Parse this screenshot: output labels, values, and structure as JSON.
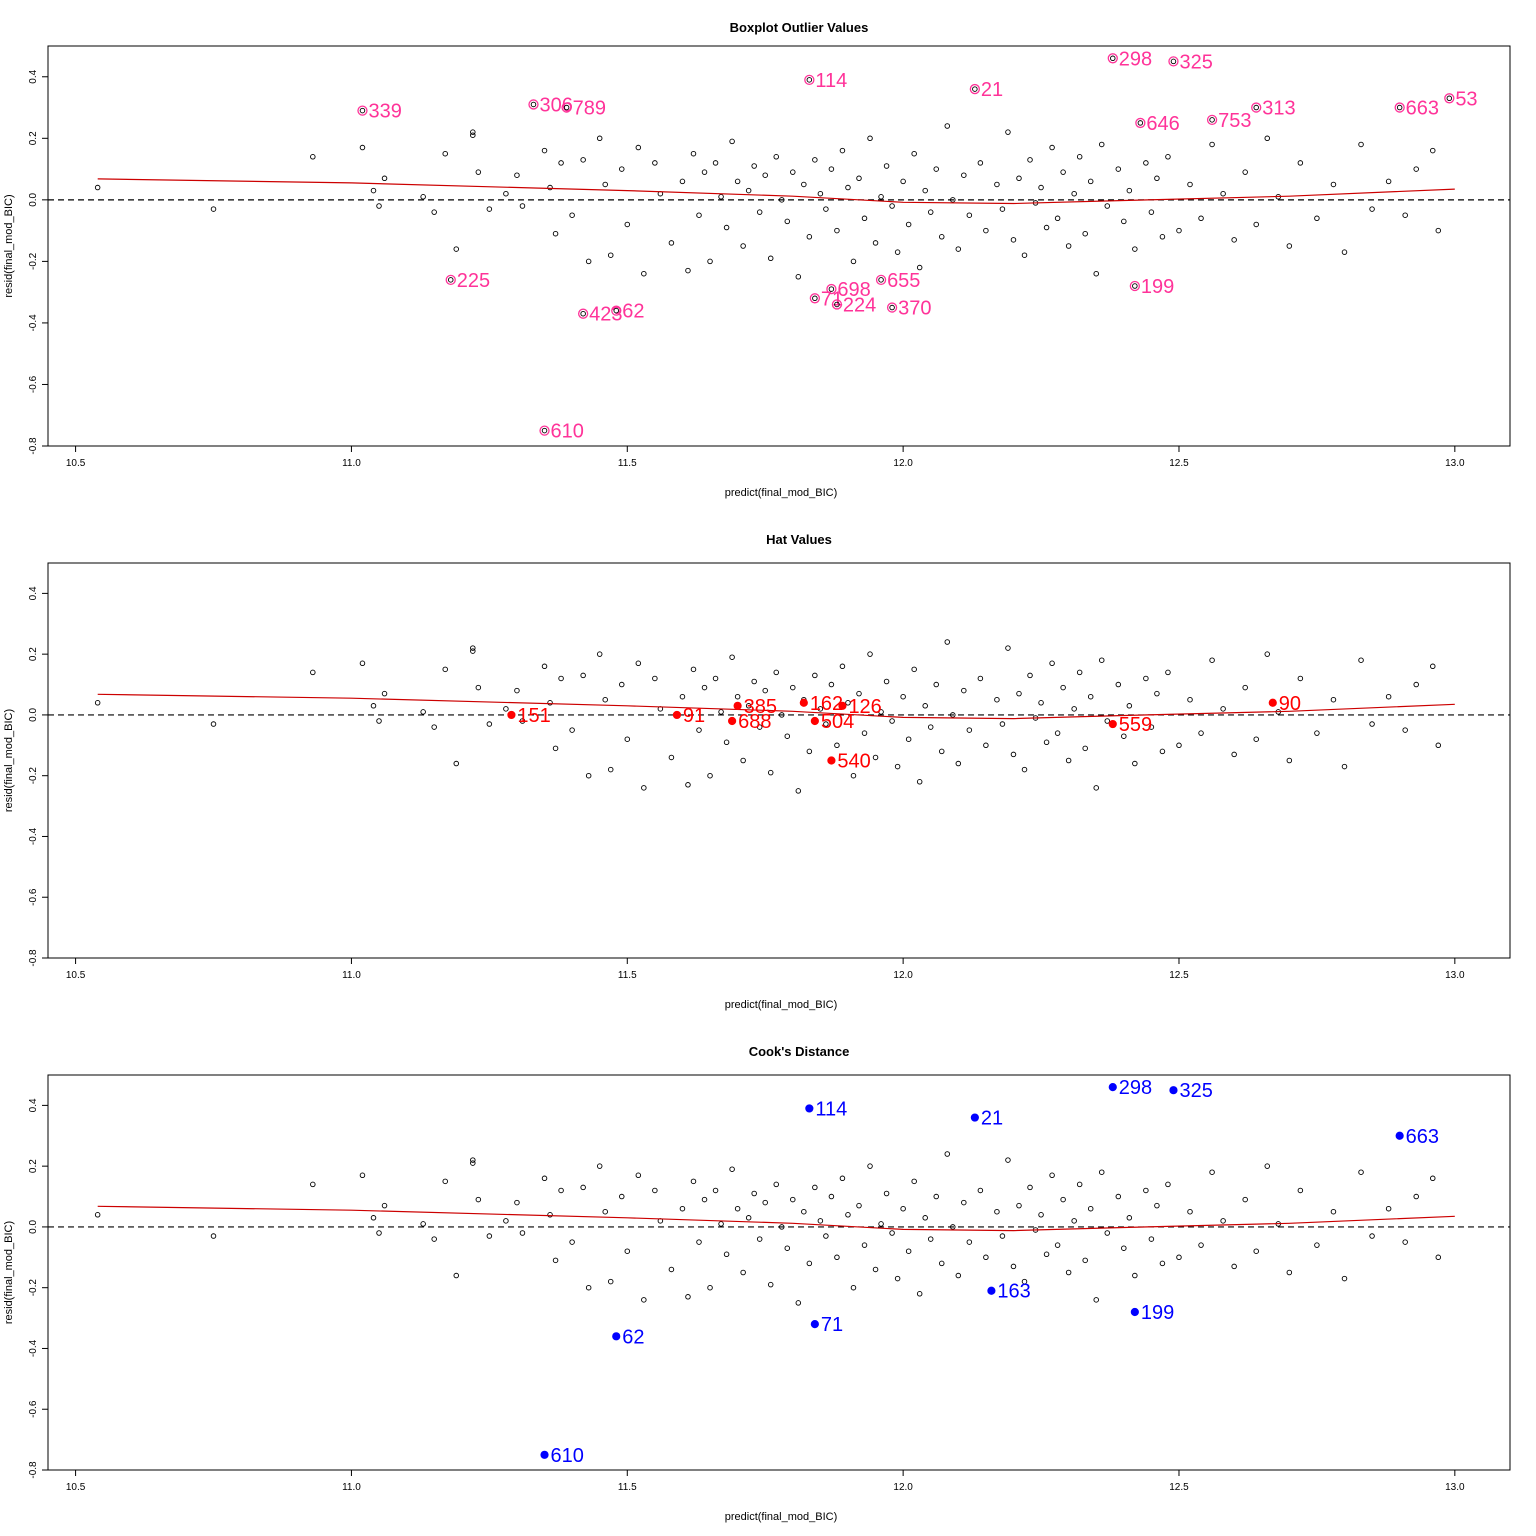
{
  "chart_data": [
    {
      "type": "scatter",
      "title": "Boxplot Outlier Values",
      "xlabel": "predict(final_mod_BIC)",
      "ylabel": "resid(final_mod_BIC)",
      "xlim": [
        10.45,
        13.1
      ],
      "ylim": [
        -0.8,
        0.5
      ],
      "x_ticks": [
        "10.5",
        "11.0",
        "11.5",
        "12.0",
        "12.5",
        "13.0"
      ],
      "y_ticks": [
        "-0.8",
        "-0.6",
        "-0.4",
        "-0.2",
        "0.0",
        "0.2",
        "0.4"
      ],
      "reference_line_y": 0,
      "smooth_color": "#cc0000",
      "highlight_color": "#ff3399",
      "highlight_style": "ringed",
      "highlighted_points": [
        {
          "label": "339",
          "x": 11.02,
          "y": 0.29
        },
        {
          "label": "306",
          "x": 11.33,
          "y": 0.31
        },
        {
          "label": "789",
          "x": 11.39,
          "y": 0.3
        },
        {
          "label": "114",
          "x": 11.83,
          "y": 0.39
        },
        {
          "label": "21",
          "x": 12.13,
          "y": 0.36
        },
        {
          "label": "298",
          "x": 12.38,
          "y": 0.46
        },
        {
          "label": "325",
          "x": 12.49,
          "y": 0.45
        },
        {
          "label": "646",
          "x": 12.43,
          "y": 0.25
        },
        {
          "label": "753",
          "x": 12.56,
          "y": 0.26
        },
        {
          "label": "313",
          "x": 12.64,
          "y": 0.3
        },
        {
          "label": "663",
          "x": 12.9,
          "y": 0.3
        },
        {
          "label": "53",
          "x": 12.99,
          "y": 0.33
        },
        {
          "label": "225",
          "x": 11.18,
          "y": -0.26
        },
        {
          "label": "423",
          "x": 11.42,
          "y": -0.37
        },
        {
          "label": "62",
          "x": 11.48,
          "y": -0.36
        },
        {
          "label": "71",
          "x": 11.84,
          "y": -0.32
        },
        {
          "label": "698",
          "x": 11.87,
          "y": -0.29
        },
        {
          "label": "655",
          "x": 11.96,
          "y": -0.26
        },
        {
          "label": "224",
          "x": 11.88,
          "y": -0.34
        },
        {
          "label": "370",
          "x": 11.98,
          "y": -0.35
        },
        {
          "label": "199",
          "x": 12.42,
          "y": -0.28
        },
        {
          "label": "610",
          "x": 11.35,
          "y": -0.75
        }
      ]
    },
    {
      "type": "scatter",
      "title": "Hat Values",
      "xlabel": "predict(final_mod_BIC)",
      "ylabel": "resid(final_mod_BIC)",
      "xlim": [
        10.45,
        13.1
      ],
      "ylim": [
        -0.8,
        0.5
      ],
      "x_ticks": [
        "10.5",
        "11.0",
        "11.5",
        "12.0",
        "12.5",
        "13.0"
      ],
      "y_ticks": [
        "-0.8",
        "-0.6",
        "-0.4",
        "-0.2",
        "0.0",
        "0.2",
        "0.4"
      ],
      "reference_line_y": 0,
      "smooth_color": "#cc0000",
      "highlight_color": "#ff0000",
      "highlight_style": "filled",
      "highlighted_points": [
        {
          "label": "151",
          "x": 11.29,
          "y": 0.0
        },
        {
          "label": "91",
          "x": 11.59,
          "y": 0.0
        },
        {
          "label": "385",
          "x": 11.7,
          "y": 0.03
        },
        {
          "label": "688",
          "x": 11.69,
          "y": -0.02
        },
        {
          "label": "162",
          "x": 11.82,
          "y": 0.04
        },
        {
          "label": "504",
          "x": 11.84,
          "y": -0.02
        },
        {
          "label": "126",
          "x": 11.89,
          "y": 0.03
        },
        {
          "label": "540",
          "x": 11.87,
          "y": -0.15
        },
        {
          "label": "559",
          "x": 12.38,
          "y": -0.03
        },
        {
          "label": "90",
          "x": 12.67,
          "y": 0.04
        }
      ]
    },
    {
      "type": "scatter",
      "title": "Cook's Distance",
      "xlabel": "predict(final_mod_BIC)",
      "ylabel": "resid(final_mod_BIC)",
      "xlim": [
        10.45,
        13.1
      ],
      "ylim": [
        -0.8,
        0.5
      ],
      "x_ticks": [
        "10.5",
        "11.0",
        "11.5",
        "12.0",
        "12.5",
        "13.0"
      ],
      "y_ticks": [
        "-0.8",
        "-0.6",
        "-0.4",
        "-0.2",
        "0.0",
        "0.2",
        "0.4"
      ],
      "reference_line_y": 0,
      "smooth_color": "#cc0000",
      "highlight_color": "#0000ff",
      "highlight_style": "filled",
      "highlighted_points": [
        {
          "label": "114",
          "x": 11.83,
          "y": 0.39
        },
        {
          "label": "21",
          "x": 12.13,
          "y": 0.36
        },
        {
          "label": "298",
          "x": 12.38,
          "y": 0.46
        },
        {
          "label": "325",
          "x": 12.49,
          "y": 0.45
        },
        {
          "label": "663",
          "x": 12.9,
          "y": 0.3
        },
        {
          "label": "163",
          "x": 12.16,
          "y": -0.21
        },
        {
          "label": "199",
          "x": 12.42,
          "y": -0.28
        },
        {
          "label": "62",
          "x": 11.48,
          "y": -0.36
        },
        {
          "label": "71",
          "x": 11.84,
          "y": -0.32
        },
        {
          "label": "610",
          "x": 11.35,
          "y": -0.75
        }
      ]
    }
  ],
  "shared_smooth_curve": [
    {
      "x": 10.54,
      "y": 0.068
    },
    {
      "x": 11.0,
      "y": 0.055
    },
    {
      "x": 11.5,
      "y": 0.03
    },
    {
      "x": 11.8,
      "y": 0.012
    },
    {
      "x": 12.0,
      "y": -0.008
    },
    {
      "x": 12.2,
      "y": -0.012
    },
    {
      "x": 12.4,
      "y": -0.002
    },
    {
      "x": 12.7,
      "y": 0.012
    },
    {
      "x": 13.0,
      "y": 0.035
    }
  ],
  "background_points": [
    {
      "x": 10.54,
      "y": 0.04
    },
    {
      "x": 10.75,
      "y": -0.03
    },
    {
      "x": 10.93,
      "y": 0.14
    },
    {
      "x": 11.02,
      "y": 0.17
    },
    {
      "x": 11.04,
      "y": 0.03
    },
    {
      "x": 11.05,
      "y": -0.02
    },
    {
      "x": 11.06,
      "y": 0.07
    },
    {
      "x": 11.13,
      "y": 0.01
    },
    {
      "x": 11.15,
      "y": -0.04
    },
    {
      "x": 11.17,
      "y": 0.15
    },
    {
      "x": 11.19,
      "y": -0.16
    },
    {
      "x": 11.22,
      "y": 0.22
    },
    {
      "x": 11.22,
      "y": 0.21
    },
    {
      "x": 11.23,
      "y": 0.09
    },
    {
      "x": 11.25,
      "y": -0.03
    },
    {
      "x": 11.28,
      "y": 0.02
    },
    {
      "x": 11.3,
      "y": 0.08
    },
    {
      "x": 11.31,
      "y": -0.02
    },
    {
      "x": 11.35,
      "y": 0.16
    },
    {
      "x": 11.36,
      "y": 0.04
    },
    {
      "x": 11.37,
      "y": -0.11
    },
    {
      "x": 11.38,
      "y": 0.12
    },
    {
      "x": 11.4,
      "y": -0.05
    },
    {
      "x": 11.42,
      "y": 0.13
    },
    {
      "x": 11.43,
      "y": -0.2
    },
    {
      "x": 11.45,
      "y": 0.2
    },
    {
      "x": 11.46,
      "y": 0.05
    },
    {
      "x": 11.47,
      "y": -0.18
    },
    {
      "x": 11.49,
      "y": 0.1
    },
    {
      "x": 11.5,
      "y": -0.08
    },
    {
      "x": 11.52,
      "y": 0.17
    },
    {
      "x": 11.53,
      "y": -0.24
    },
    {
      "x": 11.55,
      "y": 0.12
    },
    {
      "x": 11.56,
      "y": 0.02
    },
    {
      "x": 11.58,
      "y": -0.14
    },
    {
      "x": 11.6,
      "y": 0.06
    },
    {
      "x": 11.61,
      "y": -0.23
    },
    {
      "x": 11.62,
      "y": 0.15
    },
    {
      "x": 11.63,
      "y": -0.05
    },
    {
      "x": 11.64,
      "y": 0.09
    },
    {
      "x": 11.65,
      "y": -0.2
    },
    {
      "x": 11.66,
      "y": 0.12
    },
    {
      "x": 11.67,
      "y": 0.01
    },
    {
      "x": 11.68,
      "y": -0.09
    },
    {
      "x": 11.69,
      "y": 0.19
    },
    {
      "x": 11.7,
      "y": 0.06
    },
    {
      "x": 11.71,
      "y": -0.15
    },
    {
      "x": 11.72,
      "y": 0.03
    },
    {
      "x": 11.73,
      "y": 0.11
    },
    {
      "x": 11.74,
      "y": -0.04
    },
    {
      "x": 11.75,
      "y": 0.08
    },
    {
      "x": 11.76,
      "y": -0.19
    },
    {
      "x": 11.77,
      "y": 0.14
    },
    {
      "x": 11.78,
      "y": 0.0
    },
    {
      "x": 11.79,
      "y": -0.07
    },
    {
      "x": 11.8,
      "y": 0.09
    },
    {
      "x": 11.81,
      "y": -0.25
    },
    {
      "x": 11.82,
      "y": 0.05
    },
    {
      "x": 11.83,
      "y": -0.12
    },
    {
      "x": 11.84,
      "y": 0.13
    },
    {
      "x": 11.85,
      "y": 0.02
    },
    {
      "x": 11.86,
      "y": -0.03
    },
    {
      "x": 11.87,
      "y": 0.1
    },
    {
      "x": 11.88,
      "y": -0.1
    },
    {
      "x": 11.89,
      "y": 0.16
    },
    {
      "x": 11.9,
      "y": 0.04
    },
    {
      "x": 11.91,
      "y": -0.2
    },
    {
      "x": 11.92,
      "y": 0.07
    },
    {
      "x": 11.93,
      "y": -0.06
    },
    {
      "x": 11.94,
      "y": 0.2
    },
    {
      "x": 11.95,
      "y": -0.14
    },
    {
      "x": 11.96,
      "y": 0.01
    },
    {
      "x": 11.97,
      "y": 0.11
    },
    {
      "x": 11.98,
      "y": -0.02
    },
    {
      "x": 11.99,
      "y": -0.17
    },
    {
      "x": 12.0,
      "y": 0.06
    },
    {
      "x": 12.01,
      "y": -0.08
    },
    {
      "x": 12.02,
      "y": 0.15
    },
    {
      "x": 12.03,
      "y": -0.22
    },
    {
      "x": 12.04,
      "y": 0.03
    },
    {
      "x": 12.05,
      "y": -0.04
    },
    {
      "x": 12.06,
      "y": 0.1
    },
    {
      "x": 12.07,
      "y": -0.12
    },
    {
      "x": 12.08,
      "y": 0.24
    },
    {
      "x": 12.09,
      "y": 0.0
    },
    {
      "x": 12.1,
      "y": -0.16
    },
    {
      "x": 12.11,
      "y": 0.08
    },
    {
      "x": 12.12,
      "y": -0.05
    },
    {
      "x": 12.14,
      "y": 0.12
    },
    {
      "x": 12.15,
      "y": -0.1
    },
    {
      "x": 12.17,
      "y": 0.05
    },
    {
      "x": 12.18,
      "y": -0.03
    },
    {
      "x": 12.19,
      "y": 0.22
    },
    {
      "x": 12.2,
      "y": -0.13
    },
    {
      "x": 12.21,
      "y": 0.07
    },
    {
      "x": 12.22,
      "y": -0.18
    },
    {
      "x": 12.23,
      "y": 0.13
    },
    {
      "x": 12.24,
      "y": -0.01
    },
    {
      "x": 12.25,
      "y": 0.04
    },
    {
      "x": 12.26,
      "y": -0.09
    },
    {
      "x": 12.27,
      "y": 0.17
    },
    {
      "x": 12.28,
      "y": -0.06
    },
    {
      "x": 12.29,
      "y": 0.09
    },
    {
      "x": 12.3,
      "y": -0.15
    },
    {
      "x": 12.31,
      "y": 0.02
    },
    {
      "x": 12.32,
      "y": 0.14
    },
    {
      "x": 12.33,
      "y": -0.11
    },
    {
      "x": 12.34,
      "y": 0.06
    },
    {
      "x": 12.35,
      "y": -0.24
    },
    {
      "x": 12.36,
      "y": 0.18
    },
    {
      "x": 12.37,
      "y": -0.02
    },
    {
      "x": 12.39,
      "y": 0.1
    },
    {
      "x": 12.4,
      "y": -0.07
    },
    {
      "x": 12.41,
      "y": 0.03
    },
    {
      "x": 12.42,
      "y": -0.16
    },
    {
      "x": 12.44,
      "y": 0.12
    },
    {
      "x": 12.45,
      "y": -0.04
    },
    {
      "x": 12.46,
      "y": 0.07
    },
    {
      "x": 12.47,
      "y": -0.12
    },
    {
      "x": 12.48,
      "y": 0.14
    },
    {
      "x": 12.5,
      "y": -0.1
    },
    {
      "x": 12.52,
      "y": 0.05
    },
    {
      "x": 12.54,
      "y": -0.06
    },
    {
      "x": 12.56,
      "y": 0.18
    },
    {
      "x": 12.58,
      "y": 0.02
    },
    {
      "x": 12.6,
      "y": -0.13
    },
    {
      "x": 12.62,
      "y": 0.09
    },
    {
      "x": 12.64,
      "y": -0.08
    },
    {
      "x": 12.66,
      "y": 0.2
    },
    {
      "x": 12.68,
      "y": 0.01
    },
    {
      "x": 12.7,
      "y": -0.15
    },
    {
      "x": 12.72,
      "y": 0.12
    },
    {
      "x": 12.75,
      "y": -0.06
    },
    {
      "x": 12.78,
      "y": 0.05
    },
    {
      "x": 12.8,
      "y": -0.17
    },
    {
      "x": 12.83,
      "y": 0.18
    },
    {
      "x": 12.85,
      "y": -0.03
    },
    {
      "x": 12.88,
      "y": 0.06
    },
    {
      "x": 12.91,
      "y": -0.05
    },
    {
      "x": 12.93,
      "y": 0.1
    },
    {
      "x": 12.96,
      "y": 0.16
    },
    {
      "x": 12.97,
      "y": -0.1
    }
  ]
}
